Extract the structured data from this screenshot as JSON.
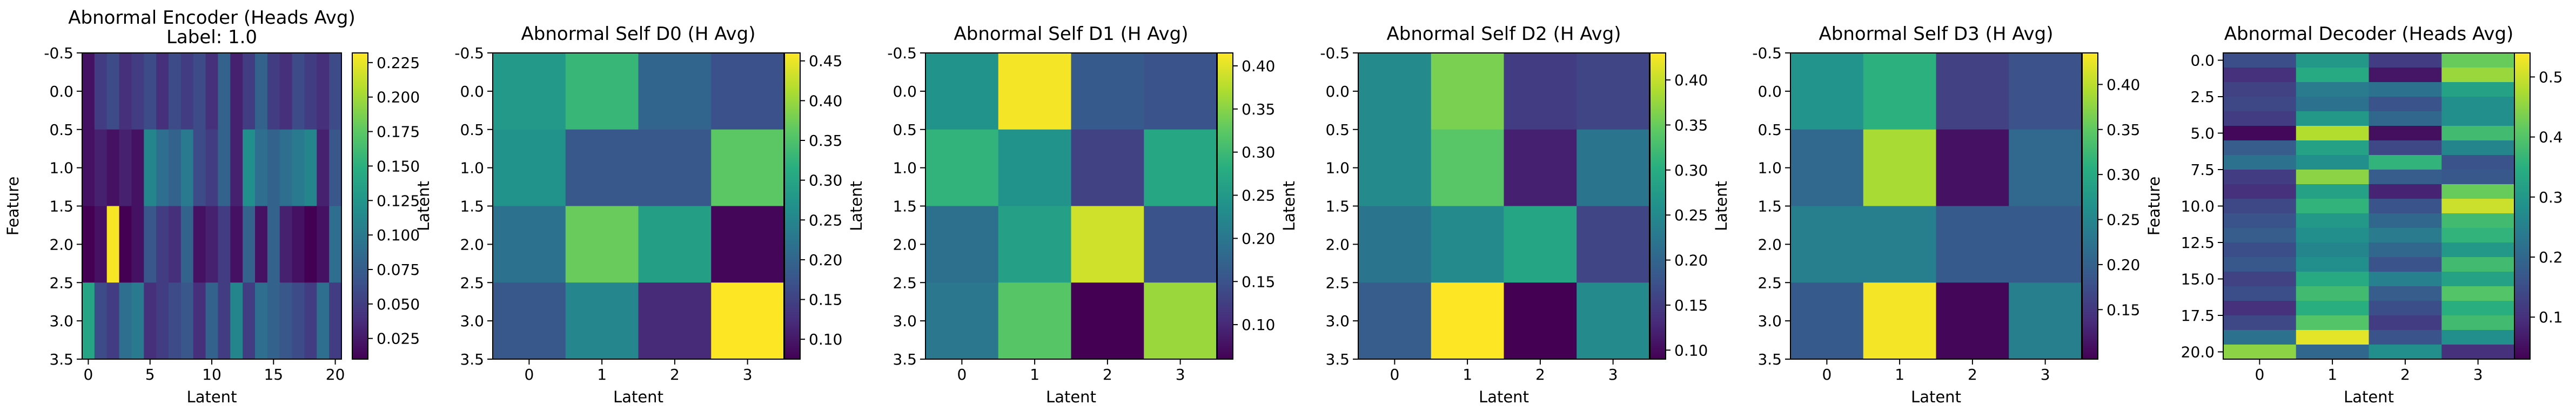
{
  "chart_data": [
    {
      "type": "heatmap",
      "title": "Abnormal Encoder (Heads Avg)",
      "subtitle": "Label: 1.0",
      "xlabel": "Latent",
      "ylabel": "Feature",
      "shape": [
        4,
        21
      ],
      "xlim": [
        -0.5,
        20.5
      ],
      "ylim": [
        3.5,
        -0.5
      ],
      "xticks": [
        0,
        5,
        10,
        15,
        20
      ],
      "yticks": [
        -0.5,
        0.0,
        0.5,
        1.0,
        1.5,
        2.0,
        2.5,
        3.0,
        3.5
      ],
      "colorbar_ticks": [
        0.025,
        0.05,
        0.075,
        0.1,
        0.125,
        0.15,
        0.175,
        0.2,
        0.225
      ],
      "vmin": 0.01,
      "vmax": 0.232,
      "colormap": "viridis",
      "values": [
        [
          0.02,
          0.05,
          0.06,
          0.04,
          0.05,
          0.06,
          0.04,
          0.06,
          0.05,
          0.06,
          0.04,
          0.08,
          0.03,
          0.05,
          0.08,
          0.05,
          0.04,
          0.06,
          0.05,
          0.04,
          0.06
        ],
        [
          0.02,
          0.03,
          0.02,
          0.03,
          0.02,
          0.11,
          0.09,
          0.08,
          0.1,
          0.06,
          0.05,
          0.08,
          0.03,
          0.12,
          0.09,
          0.08,
          0.09,
          0.1,
          0.11,
          0.03,
          0.07
        ],
        [
          0.01,
          0.02,
          0.23,
          0.01,
          0.02,
          0.07,
          0.05,
          0.04,
          0.08,
          0.02,
          0.03,
          0.05,
          0.02,
          0.08,
          0.02,
          0.08,
          0.03,
          0.02,
          0.01,
          0.02,
          0.09
        ],
        [
          0.14,
          0.06,
          0.05,
          0.09,
          0.1,
          0.04,
          0.05,
          0.06,
          0.07,
          0.04,
          0.08,
          0.05,
          0.11,
          0.05,
          0.09,
          0.08,
          0.07,
          0.06,
          0.05,
          0.09,
          0.05
        ]
      ]
    },
    {
      "type": "heatmap",
      "title": "Abnormal Self D0 (H Avg)",
      "xlabel": "Latent",
      "ylabel": "Latent",
      "shape": [
        4,
        4
      ],
      "xlim": [
        -0.5,
        3.5
      ],
      "ylim": [
        3.5,
        -0.5
      ],
      "xticks": [
        0,
        1,
        2,
        3
      ],
      "yticks": [
        -0.5,
        0.0,
        0.5,
        1.0,
        1.5,
        2.0,
        2.5,
        3.0,
        3.5
      ],
      "colorbar_ticks": [
        0.1,
        0.15,
        0.2,
        0.25,
        0.3,
        0.35,
        0.4,
        0.45
      ],
      "vmin": 0.075,
      "vmax": 0.46,
      "colormap": "viridis",
      "values": [
        [
          0.28,
          0.33,
          0.2,
          0.17
        ],
        [
          0.27,
          0.18,
          0.18,
          0.36
        ],
        [
          0.22,
          0.37,
          0.29,
          0.08
        ],
        [
          0.18,
          0.25,
          0.12,
          0.46
        ]
      ]
    },
    {
      "type": "heatmap",
      "title": "Abnormal Self D1 (H Avg)",
      "xlabel": "Latent",
      "ylabel": "Latent",
      "shape": [
        4,
        4
      ],
      "xlim": [
        -0.5,
        3.5
      ],
      "ylim": [
        3.5,
        -0.5
      ],
      "xticks": [
        0,
        1,
        2,
        3
      ],
      "yticks": [
        -0.5,
        0.0,
        0.5,
        1.0,
        1.5,
        2.0,
        2.5,
        3.0,
        3.5
      ],
      "colorbar_ticks": [
        0.1,
        0.15,
        0.2,
        0.25,
        0.3,
        0.35,
        0.4
      ],
      "vmin": 0.06,
      "vmax": 0.415,
      "colormap": "viridis",
      "values": [
        [
          0.24,
          0.41,
          0.16,
          0.15
        ],
        [
          0.29,
          0.24,
          0.13,
          0.27
        ],
        [
          0.19,
          0.26,
          0.39,
          0.15
        ],
        [
          0.2,
          0.32,
          0.06,
          0.36
        ]
      ]
    },
    {
      "type": "heatmap",
      "title": "Abnormal Self D2 (H Avg)",
      "xlabel": "Latent",
      "ylabel": "Latent",
      "shape": [
        4,
        4
      ],
      "xlim": [
        -0.5,
        3.5
      ],
      "ylim": [
        3.5,
        -0.5
      ],
      "xticks": [
        0,
        1,
        2,
        3
      ],
      "yticks": [
        -0.5,
        0.0,
        0.5,
        1.0,
        1.5,
        2.0,
        2.5,
        3.0,
        3.5
      ],
      "colorbar_ticks": [
        0.1,
        0.15,
        0.2,
        0.25,
        0.3,
        0.35,
        0.4
      ],
      "vmin": 0.09,
      "vmax": 0.43,
      "colormap": "viridis",
      "values": [
        [
          0.25,
          0.36,
          0.15,
          0.16
        ],
        [
          0.25,
          0.34,
          0.12,
          0.22
        ],
        [
          0.22,
          0.25,
          0.29,
          0.16
        ],
        [
          0.19,
          0.43,
          0.09,
          0.25
        ]
      ]
    },
    {
      "type": "heatmap",
      "title": "Abnormal Self D3 (H Avg)",
      "xlabel": "Latent",
      "ylabel": "Latent",
      "shape": [
        4,
        4
      ],
      "xlim": [
        -0.5,
        3.5
      ],
      "ylim": [
        3.5,
        -0.5
      ],
      "xticks": [
        0,
        1,
        2,
        3
      ],
      "yticks": [
        -0.5,
        0.0,
        0.5,
        1.0,
        1.5,
        2.0,
        2.5,
        3.0,
        3.5
      ],
      "colorbar_ticks": [
        0.15,
        0.2,
        0.25,
        0.3,
        0.35,
        0.4
      ],
      "vmin": 0.095,
      "vmax": 0.435,
      "colormap": "viridis",
      "values": [
        [
          0.27,
          0.31,
          0.16,
          0.18
        ],
        [
          0.21,
          0.39,
          0.11,
          0.21
        ],
        [
          0.24,
          0.24,
          0.19,
          0.19
        ],
        [
          0.19,
          0.43,
          0.1,
          0.24
        ]
      ]
    },
    {
      "type": "heatmap",
      "title": "Abnormal Decoder (Heads Avg)",
      "xlabel": "Latent",
      "ylabel": "Feature",
      "shape": [
        21,
        4
      ],
      "xlim": [
        -0.5,
        3.5
      ],
      "ylim": [
        20.5,
        -0.5
      ],
      "xticks": [
        0,
        1,
        2,
        3
      ],
      "yticks": [
        0.0,
        2.5,
        5.0,
        7.5,
        10.0,
        12.5,
        15.0,
        17.5,
        20.0
      ],
      "colorbar_ticks": [
        0.1,
        0.2,
        0.3,
        0.4,
        0.5
      ],
      "vmin": 0.03,
      "vmax": 0.54,
      "colormap": "viridis",
      "values": [
        [
          0.15,
          0.3,
          0.12,
          0.42
        ],
        [
          0.1,
          0.34,
          0.06,
          0.46
        ],
        [
          0.13,
          0.24,
          0.22,
          0.32
        ],
        [
          0.14,
          0.22,
          0.16,
          0.28
        ],
        [
          0.12,
          0.3,
          0.2,
          0.28
        ],
        [
          0.04,
          0.48,
          0.05,
          0.38
        ],
        [
          0.18,
          0.32,
          0.14,
          0.26
        ],
        [
          0.22,
          0.28,
          0.36,
          0.16
        ],
        [
          0.12,
          0.45,
          0.18,
          0.17
        ],
        [
          0.1,
          0.32,
          0.08,
          0.42
        ],
        [
          0.14,
          0.36,
          0.16,
          0.5
        ],
        [
          0.16,
          0.3,
          0.2,
          0.38
        ],
        [
          0.18,
          0.28,
          0.24,
          0.36
        ],
        [
          0.15,
          0.26,
          0.2,
          0.3
        ],
        [
          0.17,
          0.28,
          0.16,
          0.38
        ],
        [
          0.13,
          0.34,
          0.25,
          0.32
        ],
        [
          0.15,
          0.38,
          0.18,
          0.4
        ],
        [
          0.1,
          0.35,
          0.15,
          0.35
        ],
        [
          0.14,
          0.4,
          0.12,
          0.38
        ],
        [
          0.22,
          0.52,
          0.16,
          0.28
        ],
        [
          0.45,
          0.2,
          0.28,
          0.1
        ]
      ]
    }
  ]
}
